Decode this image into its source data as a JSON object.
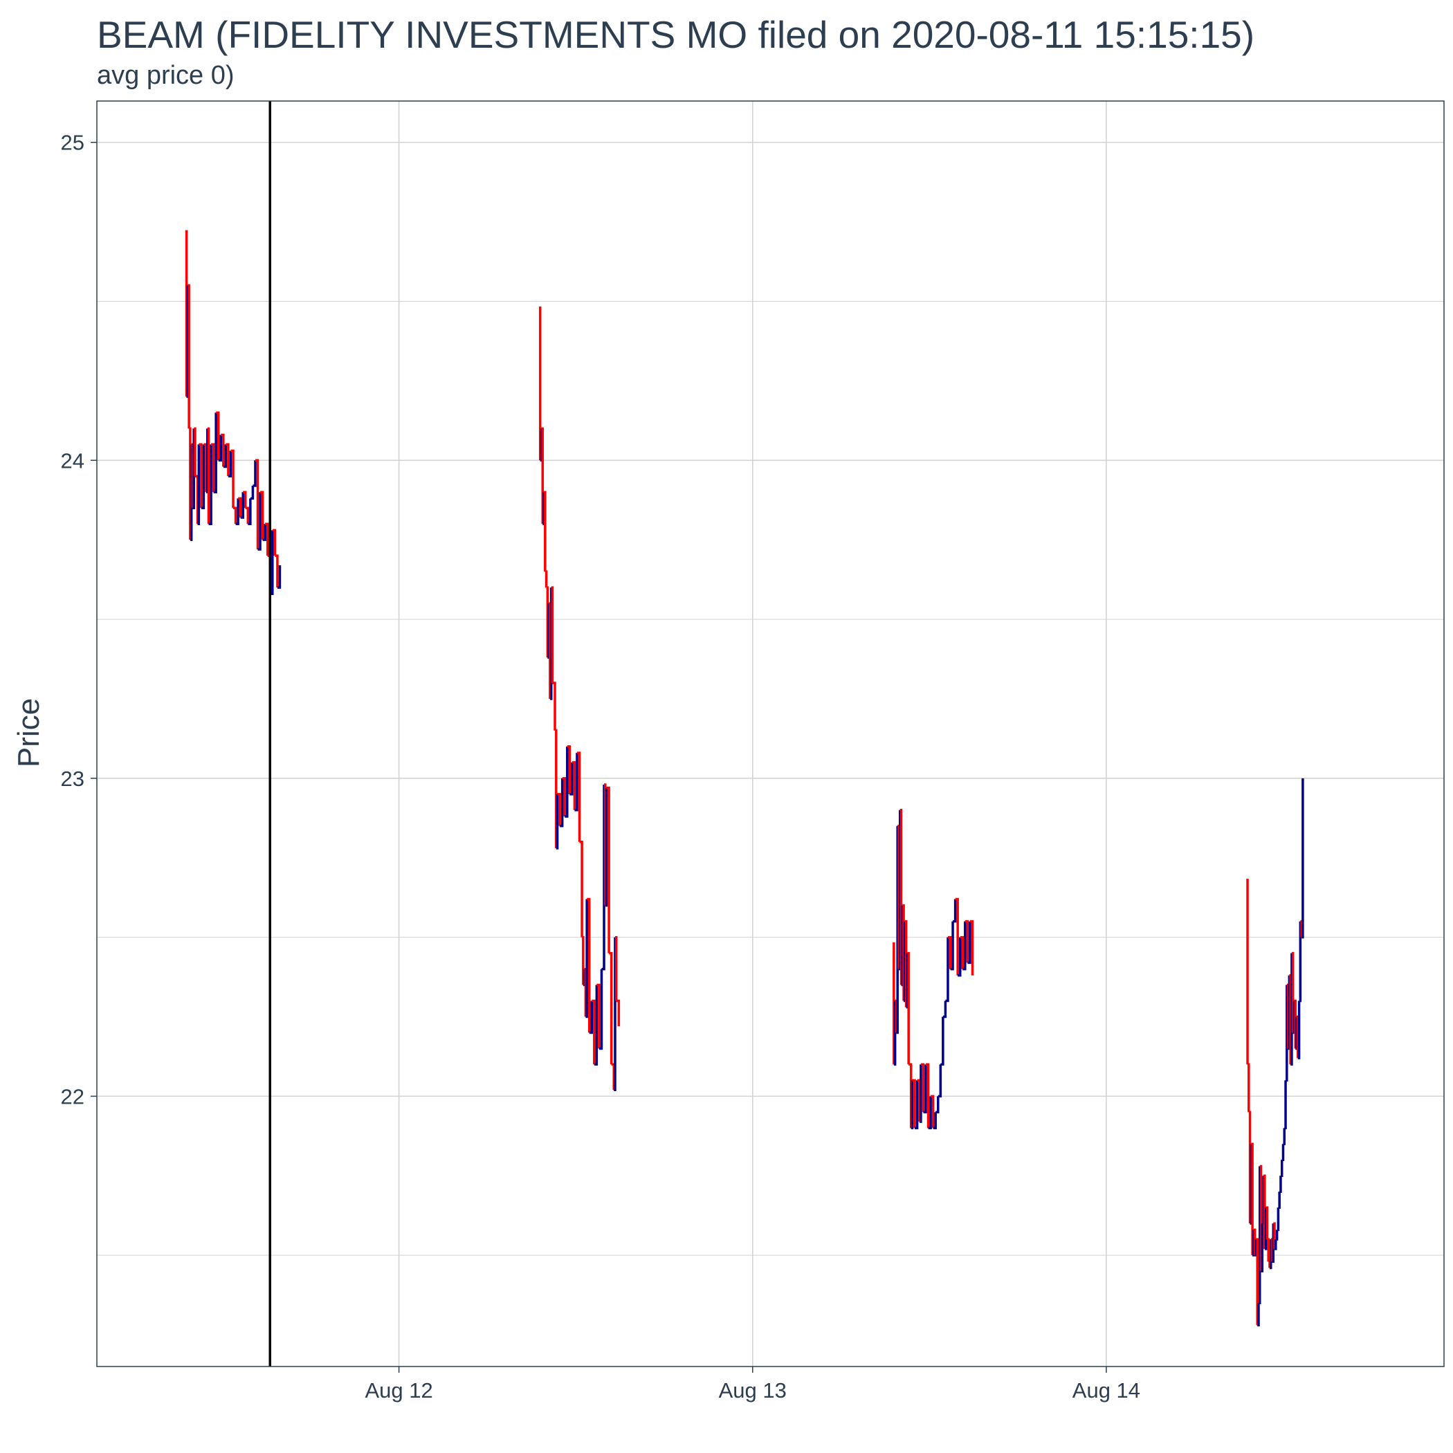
{
  "chart_data": {
    "type": "line",
    "title": "BEAM (FIDELITY INVESTMENTS MO filed on 2020-08-11 15:15:15)",
    "subtitle": "avg price 0)",
    "xlabel": "",
    "ylabel": "Price",
    "xlim": [
      "2020-08-11 03:30",
      "2020-08-14 22:55"
    ],
    "ylim": [
      21.15,
      25.13
    ],
    "x_ticks": [
      {
        "value": "2020-08-12 00:00",
        "label": "Aug 12"
      },
      {
        "value": "2020-08-13 00:00",
        "label": "Aug 13"
      },
      {
        "value": "2020-08-14 00:00",
        "label": "Aug 14"
      }
    ],
    "y_ticks": [
      22,
      23,
      24,
      25
    ],
    "y_minor": [
      21.5,
      22.5,
      23.5,
      24.5
    ],
    "grid": true,
    "legend": "none",
    "colors": {
      "up": "#00008b",
      "down": "#ff0000",
      "filing_line": "#000000",
      "grid": "#d3d3d3",
      "panel_border": "#2c3e50",
      "text": "#2c3e50"
    },
    "filing_time": "2020-08-11 15:15",
    "series": [
      {
        "date": "2020-08-11",
        "points": [
          [
            "09:30",
            24.72
          ],
          [
            "09:35",
            24.2
          ],
          [
            "09:40",
            24.55
          ],
          [
            "09:45",
            24.1
          ],
          [
            "09:50",
            23.75
          ],
          [
            "09:55",
            24.05
          ],
          [
            "10:00",
            23.85
          ],
          [
            "10:05",
            24.1
          ],
          [
            "10:10",
            23.95
          ],
          [
            "10:20",
            23.8
          ],
          [
            "10:25",
            24.05
          ],
          [
            "10:35",
            23.85
          ],
          [
            "10:45",
            24.05
          ],
          [
            "10:55",
            23.9
          ],
          [
            "11:00",
            24.1
          ],
          [
            "11:05",
            23.8
          ],
          [
            "11:15",
            24.05
          ],
          [
            "11:25",
            23.9
          ],
          [
            "11:35",
            24.15
          ],
          [
            "11:45",
            24.0
          ],
          [
            "11:55",
            24.08
          ],
          [
            "12:05",
            23.98
          ],
          [
            "12:15",
            24.05
          ],
          [
            "12:25",
            23.95
          ],
          [
            "12:35",
            24.03
          ],
          [
            "12:45",
            23.85
          ],
          [
            "12:55",
            23.8
          ],
          [
            "13:05",
            23.88
          ],
          [
            "13:15",
            23.82
          ],
          [
            "13:25",
            23.9
          ],
          [
            "13:35",
            23.85
          ],
          [
            "13:45",
            23.8
          ],
          [
            "13:55",
            23.88
          ],
          [
            "14:05",
            23.92
          ],
          [
            "14:15",
            24.0
          ],
          [
            "14:25",
            23.72
          ],
          [
            "14:35",
            23.9
          ],
          [
            "14:45",
            23.75
          ],
          [
            "14:55",
            23.8
          ],
          [
            "15:05",
            23.7
          ],
          [
            "15:15",
            23.58
          ],
          [
            "15:25",
            23.78
          ],
          [
            "15:35",
            23.7
          ],
          [
            "15:45",
            23.6
          ],
          [
            "15:55",
            23.67
          ]
        ]
      },
      {
        "date": "2020-08-12",
        "points": [
          [
            "09:30",
            24.48
          ],
          [
            "09:35",
            24.0
          ],
          [
            "09:40",
            24.1
          ],
          [
            "09:45",
            23.8
          ],
          [
            "09:50",
            23.9
          ],
          [
            "09:55",
            23.65
          ],
          [
            "10:00",
            23.6
          ],
          [
            "10:05",
            23.38
          ],
          [
            "10:10",
            23.55
          ],
          [
            "10:15",
            23.25
          ],
          [
            "10:20",
            23.6
          ],
          [
            "10:25",
            23.3
          ],
          [
            "10:35",
            23.15
          ],
          [
            "10:40",
            22.78
          ],
          [
            "10:45",
            22.95
          ],
          [
            "10:55",
            22.85
          ],
          [
            "11:05",
            23.0
          ],
          [
            "11:15",
            22.88
          ],
          [
            "11:25",
            23.1
          ],
          [
            "11:35",
            22.95
          ],
          [
            "11:45",
            23.05
          ],
          [
            "11:55",
            22.9
          ],
          [
            "12:05",
            23.08
          ],
          [
            "12:15",
            22.8
          ],
          [
            "12:25",
            22.5
          ],
          [
            "12:30",
            22.35
          ],
          [
            "12:35",
            22.4
          ],
          [
            "12:40",
            22.25
          ],
          [
            "12:45",
            22.62
          ],
          [
            "12:55",
            22.2
          ],
          [
            "13:05",
            22.3
          ],
          [
            "13:15",
            22.1
          ],
          [
            "13:25",
            22.35
          ],
          [
            "13:35",
            22.15
          ],
          [
            "13:45",
            22.4
          ],
          [
            "13:55",
            22.98
          ],
          [
            "14:00",
            22.6
          ],
          [
            "14:05",
            22.97
          ],
          [
            "14:15",
            22.45
          ],
          [
            "14:25",
            22.1
          ],
          [
            "14:35",
            22.02
          ],
          [
            "14:40",
            22.5
          ],
          [
            "14:45",
            22.3
          ],
          [
            "14:55",
            22.22
          ]
        ]
      },
      {
        "date": "2020-08-13",
        "points": [
          [
            "09:30",
            22.48
          ],
          [
            "09:35",
            22.1
          ],
          [
            "09:40",
            22.3
          ],
          [
            "09:45",
            22.2
          ],
          [
            "09:50",
            22.85
          ],
          [
            "09:55",
            22.4
          ],
          [
            "10:00",
            22.9
          ],
          [
            "10:05",
            22.35
          ],
          [
            "10:10",
            22.6
          ],
          [
            "10:15",
            22.3
          ],
          [
            "10:20",
            22.55
          ],
          [
            "10:25",
            22.28
          ],
          [
            "10:30",
            22.45
          ],
          [
            "10:35",
            22.1
          ],
          [
            "10:45",
            21.9
          ],
          [
            "10:50",
            22.05
          ],
          [
            "11:00",
            21.9
          ],
          [
            "11:10",
            22.05
          ],
          [
            "11:20",
            21.92
          ],
          [
            "11:25",
            22.1
          ],
          [
            "11:35",
            21.95
          ],
          [
            "11:45",
            22.1
          ],
          [
            "11:55",
            21.9
          ],
          [
            "12:05",
            22.0
          ],
          [
            "12:15",
            21.9
          ],
          [
            "12:25",
            21.95
          ],
          [
            "12:35",
            22.0
          ],
          [
            "12:45",
            22.1
          ],
          [
            "12:55",
            22.25
          ],
          [
            "13:05",
            22.3
          ],
          [
            "13:15",
            22.5
          ],
          [
            "13:25",
            22.4
          ],
          [
            "13:35",
            22.55
          ],
          [
            "13:45",
            22.62
          ],
          [
            "13:55",
            22.38
          ],
          [
            "14:05",
            22.5
          ],
          [
            "14:15",
            22.4
          ],
          [
            "14:25",
            22.55
          ],
          [
            "14:35",
            22.42
          ],
          [
            "14:45",
            22.55
          ],
          [
            "14:55",
            22.38
          ]
        ]
      },
      {
        "date": "2020-08-14",
        "points": [
          [
            "09:30",
            22.68
          ],
          [
            "09:35",
            22.1
          ],
          [
            "09:40",
            21.95
          ],
          [
            "09:45",
            21.6
          ],
          [
            "09:50",
            21.85
          ],
          [
            "09:55",
            21.5
          ],
          [
            "10:00",
            21.58
          ],
          [
            "10:05",
            21.5
          ],
          [
            "10:10",
            21.55
          ],
          [
            "10:15",
            21.28
          ],
          [
            "10:20",
            21.35
          ],
          [
            "10:25",
            21.78
          ],
          [
            "10:30",
            21.45
          ],
          [
            "10:35",
            21.6
          ],
          [
            "10:40",
            21.75
          ],
          [
            "10:45",
            21.52
          ],
          [
            "10:50",
            21.65
          ],
          [
            "10:55",
            21.55
          ],
          [
            "11:00",
            21.48
          ],
          [
            "11:05",
            21.46
          ],
          [
            "11:10",
            21.55
          ],
          [
            "11:15",
            21.48
          ],
          [
            "11:20",
            21.6
          ],
          [
            "11:25",
            21.52
          ],
          [
            "11:30",
            21.55
          ],
          [
            "11:35",
            21.58
          ],
          [
            "11:40",
            21.65
          ],
          [
            "11:45",
            21.7
          ],
          [
            "11:50",
            21.75
          ],
          [
            "11:55",
            21.8
          ],
          [
            "12:00",
            21.85
          ],
          [
            "12:05",
            21.9
          ],
          [
            "12:10",
            22.05
          ],
          [
            "12:15",
            22.35
          ],
          [
            "12:20",
            22.15
          ],
          [
            "12:25",
            22.38
          ],
          [
            "12:30",
            22.1
          ],
          [
            "12:35",
            22.45
          ],
          [
            "12:40",
            22.2
          ],
          [
            "12:45",
            22.3
          ],
          [
            "12:50",
            22.15
          ],
          [
            "12:55",
            22.25
          ],
          [
            "13:00",
            22.12
          ],
          [
            "13:05",
            22.3
          ],
          [
            "13:10",
            22.55
          ],
          [
            "13:15",
            22.5
          ],
          [
            "13:20",
            23.0
          ]
        ]
      }
    ]
  }
}
